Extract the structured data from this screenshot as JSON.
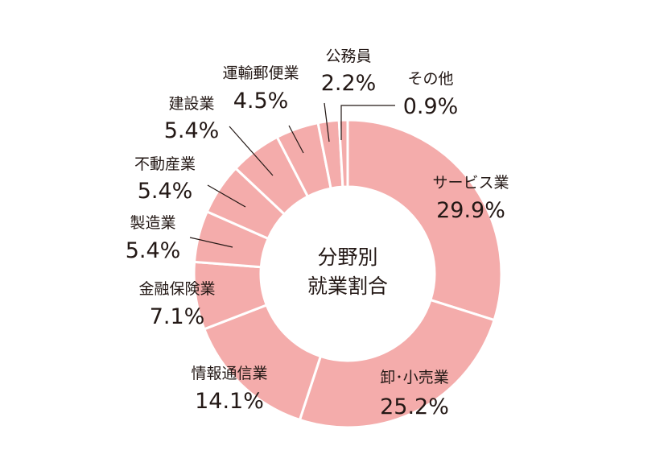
{
  "chart_data": {
    "type": "pie",
    "variant": "donut",
    "center_label": [
      "分野別",
      "就業割合"
    ],
    "slice_color": "#f4acab",
    "separator_color": "#ffffff",
    "start": "top",
    "direction": "clockwise",
    "slices": [
      {
        "label": "サービス業",
        "value": 29.9,
        "value_label": "29.9%"
      },
      {
        "label": "卸･小売業",
        "value": 25.2,
        "value_label": "25.2%"
      },
      {
        "label": "情報通信業",
        "value": 14.1,
        "value_label": "14.1%"
      },
      {
        "label": "金融保険業",
        "value": 7.1,
        "value_label": "7.1%"
      },
      {
        "label": "製造業",
        "value": 5.4,
        "value_label": "5.4%"
      },
      {
        "label": "不動産業",
        "value": 5.4,
        "value_label": "5.4%"
      },
      {
        "label": "建設業",
        "value": 5.4,
        "value_label": "5.4%"
      },
      {
        "label": "運輸郵便業",
        "value": 4.5,
        "value_label": "4.5%"
      },
      {
        "label": "公務員",
        "value": 2.2,
        "value_label": "2.2%"
      },
      {
        "label": "その他",
        "value": 0.9,
        "value_label": "0.9%"
      }
    ]
  }
}
